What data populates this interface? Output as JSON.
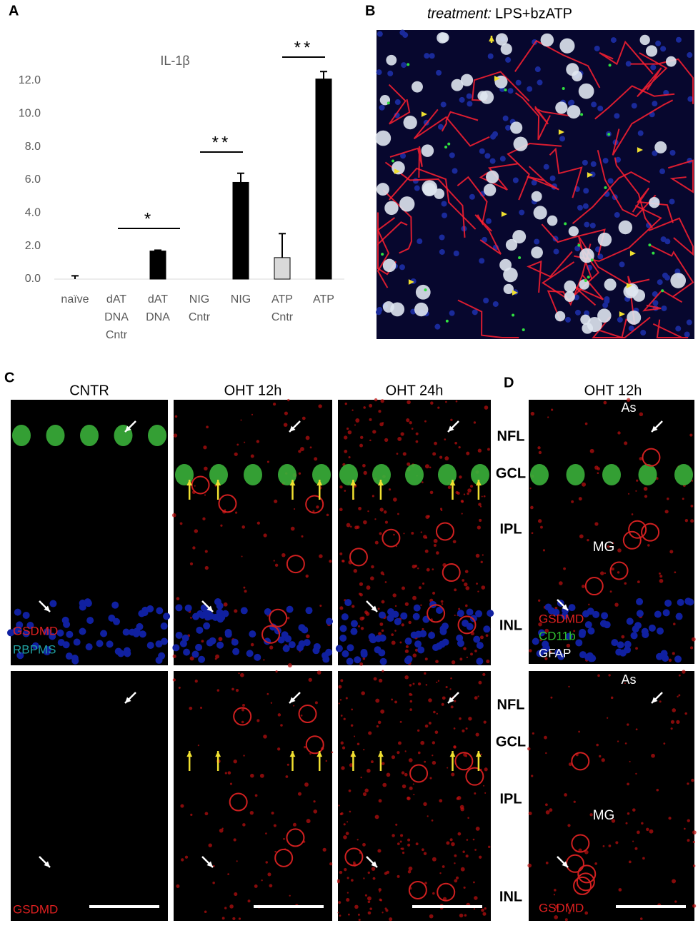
{
  "panel_labels": {
    "a": "A",
    "b": "B",
    "c": "C",
    "d": "D"
  },
  "chart_data": {
    "type": "bar",
    "title": "IL-1β",
    "categories": [
      "naïve",
      "dAT DNA Cntr",
      "dAT DNA",
      "NIG Cntr",
      "NIG",
      "ATP Cntr",
      "ATP"
    ],
    "values": [
      0,
      null,
      1.7,
      null,
      5.85,
      1.3,
      12.1
    ],
    "errors": [
      0.2,
      null,
      0.05,
      null,
      0.55,
      1.45,
      0.45
    ],
    "colors": [
      "#000000",
      "#000000",
      "#000000",
      "#000000",
      "#000000",
      "#d9d9d9",
      "#000000"
    ],
    "ylim": [
      0,
      14
    ],
    "yticks": [
      {
        "value": 0,
        "label": "0.0"
      },
      {
        "value": 2,
        "label": "2.0"
      },
      {
        "value": 4,
        "label": "4.0"
      },
      {
        "value": 6,
        "label": "6.0"
      },
      {
        "value": 8,
        "label": "8.0"
      },
      {
        "value": 10,
        "label": "10.0"
      },
      {
        "value": 12,
        "label": "12.0"
      }
    ],
    "annotations": [
      "*",
      "**",
      "**"
    ],
    "grid": false
  },
  "panel_b": {
    "title_prefix": "treatment:",
    "title": "LPS+bzATP"
  },
  "panel_c": {
    "columns": [
      "CNTR",
      "OHT 12h",
      "OHT 24h"
    ],
    "top_legend": [
      "GSDMD",
      "RBPMS"
    ],
    "bottom_legend": "GSDMD"
  },
  "layers": [
    "NFL",
    "GCL",
    "IPL",
    "INL"
  ],
  "panel_d": {
    "title": "OHT 12h",
    "top_labels": [
      "As",
      "MG"
    ],
    "top_legend": [
      "GSDMD",
      "CD11b",
      "GFAP"
    ],
    "bottom_labels": [
      "As",
      "MG"
    ],
    "bottom_legend": "GSDMD"
  }
}
